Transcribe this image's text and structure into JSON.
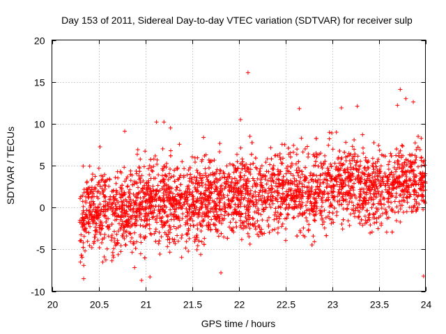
{
  "chart_data": {
    "type": "scatter",
    "title": "Day 153 of 2011, Sidereal Day-to-day VTEC variation (SDTVAR) for receiver sulp",
    "xlabel": "GPS time / hours",
    "ylabel": "SDTVAR / TECUs",
    "xlim": [
      20,
      24
    ],
    "ylim": [
      -10,
      20
    ],
    "xticks": [
      "20",
      "20.5",
      "21",
      "21.5",
      "22",
      "22.5",
      "23",
      "23.5",
      "24"
    ],
    "yticks": [
      "-10",
      "-5",
      "0",
      "5",
      "10",
      "15",
      "20"
    ],
    "grid": true,
    "marker": "+",
    "series": [
      {
        "name": "SDTVAR",
        "color": "#ff0000",
        "description": "dense scatter of several thousand points from ~20.3 h to 24 h",
        "x": [
          20.32,
          20.35,
          20.38,
          20.41,
          20.44,
          20.47,
          20.5,
          20.53,
          20.56,
          20.6,
          20.64,
          20.68,
          20.72,
          20.76,
          20.8,
          20.85,
          20.9,
          20.95,
          21.0,
          21.05,
          21.1,
          21.15,
          21.2,
          21.25,
          21.3,
          21.35,
          21.4,
          21.45,
          21.5,
          21.55,
          21.6,
          21.65,
          21.7,
          21.75,
          21.8,
          21.85,
          21.9,
          21.95,
          22.0,
          22.05,
          22.1,
          22.15,
          22.2,
          22.25,
          22.3,
          22.35,
          22.4,
          22.45,
          22.5,
          22.55,
          22.6,
          22.65,
          22.7,
          22.75,
          22.8,
          22.85,
          22.9,
          22.95,
          23.0,
          23.05,
          23.1,
          23.15,
          23.2,
          23.25,
          23.3,
          23.35,
          23.4,
          23.45,
          23.5,
          23.55,
          23.6,
          23.65,
          23.7,
          23.75,
          23.8,
          23.85,
          23.9,
          23.95,
          24.0,
          20.78,
          20.92,
          21.12,
          21.2,
          21.27,
          22.02,
          22.1,
          22.12,
          22.65,
          23.1,
          23.27,
          23.7,
          23.73,
          23.79,
          23.87,
          20.96,
          21.05,
          20.34,
          21.81,
          23.98
        ],
        "y": [
          -1.5,
          -2.1,
          -1.2,
          -0.8,
          -1.6,
          -0.5,
          -0.9,
          -0.2,
          0.1,
          -0.3,
          0.0,
          0.4,
          -0.1,
          0.6,
          0.2,
          0.5,
          0.8,
          0.3,
          0.7,
          1.0,
          0.9,
          1.2,
          0.8,
          1.4,
          1.1,
          1.6,
          1.3,
          1.8,
          1.5,
          1.9,
          1.7,
          2.0,
          1.8,
          2.2,
          2.0,
          2.3,
          2.1,
          2.4,
          2.2,
          2.6,
          2.3,
          2.5,
          2.7,
          2.4,
          2.8,
          2.6,
          2.9,
          2.7,
          3.0,
          2.8,
          3.1,
          2.9,
          3.2,
          3.0,
          3.1,
          3.3,
          3.0,
          3.2,
          3.4,
          3.1,
          3.3,
          3.5,
          3.2,
          3.4,
          3.1,
          3.3,
          3.2,
          3.0,
          3.2,
          2.9,
          3.1,
          2.8,
          3.0,
          2.7,
          2.9,
          2.6,
          2.8,
          2.7,
          2.9,
          9.1,
          6.9,
          10.2,
          10.2,
          9.5,
          10.5,
          16.1,
          8.5,
          11.8,
          11.9,
          12.1,
          12.2,
          14.1,
          13.0,
          12.6,
          -8.7,
          -8.3,
          -8.5,
          -7.8,
          -8.2
        ]
      }
    ]
  }
}
